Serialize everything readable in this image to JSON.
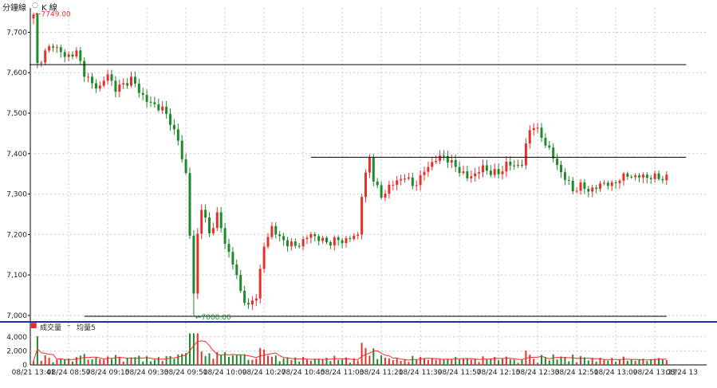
{
  "header": {
    "title": "分鐘線",
    "mode_icon": "radio-circle-icon",
    "mode_label": "K 線"
  },
  "volume_panel": {
    "legend_icon": "red-square-icon",
    "legend_label": "成交量",
    "legend_sep": "–",
    "ma_label": "均量5"
  },
  "colors": {
    "up": "#e8302a",
    "down": "#1f8a2c",
    "grid": "#c9c9c9",
    "hline": "#000000",
    "divider": "#1a2fa8",
    "ma_line": "#e8302a",
    "high_label": "#e8302a",
    "low_label": "#1f8a2c"
  },
  "chart_data": {
    "type": "candlestick",
    "price_axis": {
      "ylim": [
        6990,
        7760
      ],
      "ticks": [
        7000,
        7100,
        7200,
        7300,
        7400,
        7500,
        7600,
        7700
      ],
      "tick_labels": [
        "7,000",
        "7,100",
        "7,200",
        "7,300",
        "7,400",
        "7,500",
        "7,600",
        "7,700"
      ]
    },
    "volume_axis": {
      "ylim": [
        0,
        5000
      ],
      "ticks": [
        0,
        2000,
        4000
      ],
      "tick_labels": [
        "0",
        "2,000",
        "4,000"
      ]
    },
    "time_axis": {
      "total_bars": 163,
      "tick_index": [
        0,
        9,
        19,
        29,
        39,
        49,
        59,
        69,
        79,
        89,
        99,
        109,
        119,
        129,
        139,
        149,
        159
      ],
      "tick_labels": [
        "08/21 13:41",
        "08/24 08:57",
        "08/24 09:15",
        "08/24 09:33",
        "08/24 09:51",
        "08/24 10:09",
        "08/24 10:27",
        "08/24 10:45",
        "08/24 11:03",
        "08/24 11:21",
        "08/24 11:39",
        "08/24 11:57",
        "08/24 12:15",
        "08/24 12:33",
        "08/24 12:51",
        "08/24 13:09",
        "08/24 13:27"
      ],
      "last_label": "08/24 13"
    },
    "annotations": {
      "high_text": "7749.00",
      "high_value": 7749,
      "high_index": 0,
      "low_text": "7000.00",
      "low_value": 7000,
      "low_index": 41
    },
    "horizontal_lines": [
      {
        "value": 7620,
        "from_index": -1,
        "to_index": 167
      },
      {
        "value": 7391,
        "from_index": 71,
        "to_index": 167
      },
      {
        "value": 6998,
        "from_index": 13,
        "to_index": 162
      }
    ],
    "ma_name": "均量5",
    "keypoints": [
      [
        0,
        7740
      ],
      [
        1,
        7620
      ],
      [
        3,
        7650
      ],
      [
        5,
        7670
      ],
      [
        8,
        7640
      ],
      [
        11,
        7650
      ],
      [
        13,
        7600
      ],
      [
        15,
        7570
      ],
      [
        17,
        7565
      ],
      [
        19,
        7595
      ],
      [
        21,
        7560
      ],
      [
        23,
        7570
      ],
      [
        25,
        7585
      ],
      [
        27,
        7555
      ],
      [
        29,
        7530
      ],
      [
        31,
        7520
      ],
      [
        33,
        7510
      ],
      [
        35,
        7480
      ],
      [
        37,
        7430
      ],
      [
        39,
        7350
      ],
      [
        41,
        7050
      ],
      [
        42,
        7200
      ],
      [
        43,
        7270
      ],
      [
        45,
        7200
      ],
      [
        47,
        7250
      ],
      [
        49,
        7180
      ],
      [
        51,
        7130
      ],
      [
        53,
        7060
      ],
      [
        55,
        7020
      ],
      [
        57,
        7050
      ],
      [
        59,
        7170
      ],
      [
        61,
        7220
      ],
      [
        63,
        7190
      ],
      [
        65,
        7180
      ],
      [
        67,
        7170
      ],
      [
        69,
        7185
      ],
      [
        71,
        7200
      ],
      [
        73,
        7190
      ],
      [
        75,
        7180
      ],
      [
        77,
        7185
      ],
      [
        79,
        7185
      ],
      [
        81,
        7190
      ],
      [
        83,
        7200
      ],
      [
        84,
        7300
      ],
      [
        86,
        7390
      ],
      [
        87,
        7340
      ],
      [
        89,
        7290
      ],
      [
        91,
        7320
      ],
      [
        93,
        7330
      ],
      [
        95,
        7345
      ],
      [
        97,
        7320
      ],
      [
        99,
        7340
      ],
      [
        101,
        7370
      ],
      [
        103,
        7385
      ],
      [
        105,
        7395
      ],
      [
        107,
        7375
      ],
      [
        109,
        7360
      ],
      [
        111,
        7340
      ],
      [
        113,
        7350
      ],
      [
        115,
        7365
      ],
      [
        117,
        7355
      ],
      [
        119,
        7350
      ],
      [
        121,
        7375
      ],
      [
        123,
        7370
      ],
      [
        125,
        7375
      ],
      [
        127,
        7460
      ],
      [
        128,
        7470
      ],
      [
        130,
        7440
      ],
      [
        132,
        7410
      ],
      [
        134,
        7370
      ],
      [
        136,
        7340
      ],
      [
        138,
        7310
      ],
      [
        140,
        7320
      ],
      [
        142,
        7310
      ],
      [
        144,
        7315
      ],
      [
        146,
        7330
      ],
      [
        148,
        7320
      ],
      [
        150,
        7340
      ],
      [
        152,
        7345
      ],
      [
        162,
        7340
      ]
    ]
  }
}
